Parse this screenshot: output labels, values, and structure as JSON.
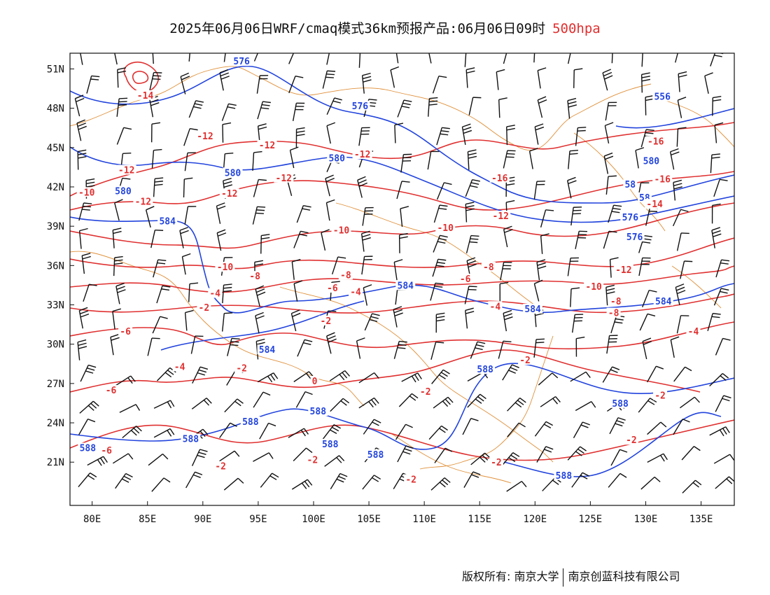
{
  "title": {
    "main": "2025年06月06日WRF/cmaq模式36km预报产品:06月06日09时",
    "level": "500hpa"
  },
  "colors": {
    "temperature": "#e03030",
    "height": "#2244dd",
    "boundary": "#e0903a",
    "wind": "#111111",
    "text": "#111111"
  },
  "axes": {
    "lat_ticks": [
      "51N",
      "48N",
      "45N",
      "42N",
      "39N",
      "36N",
      "33N",
      "30N",
      "27N",
      "24N",
      "21N"
    ],
    "lon_ticks": [
      "80E",
      "85E",
      "90E",
      "95E",
      "100E",
      "105E",
      "110E",
      "115E",
      "120E",
      "125E",
      "130E",
      "135E"
    ]
  },
  "footer": {
    "left": "版权所有: 南京大学",
    "right": "南京创蓝科技有限公司"
  },
  "height_labels": [
    {
      "text": "576",
      "lon": 93.5,
      "lat": 51.5
    },
    {
      "text": "576",
      "lon": 104.2,
      "lat": 48.1
    },
    {
      "text": "556",
      "lon": 131.5,
      "lat": 48.8
    },
    {
      "text": "580",
      "lon": 92.7,
      "lat": 43.0
    },
    {
      "text": "580",
      "lon": 102.1,
      "lat": 44.1
    },
    {
      "text": "580",
      "lon": 82.8,
      "lat": 41.6
    },
    {
      "text": "580",
      "lon": 130.5,
      "lat": 43.9
    },
    {
      "text": "584",
      "lon": 86.8,
      "lat": 39.3
    },
    {
      "text": "584",
      "lon": 108.3,
      "lat": 34.4
    },
    {
      "text": "584",
      "lon": 119.8,
      "lat": 32.6
    },
    {
      "text": "584",
      "lon": 95.8,
      "lat": 29.5
    },
    {
      "text": "584",
      "lon": 131.6,
      "lat": 33.2
    },
    {
      "text": "576",
      "lon": 129.0,
      "lat": 38.1
    },
    {
      "text": "576",
      "lon": 128.6,
      "lat": 39.6
    },
    {
      "text": "588",
      "lon": 115.5,
      "lat": 28.0
    },
    {
      "text": "588",
      "lon": 127.7,
      "lat": 25.4
    },
    {
      "text": "588",
      "lon": 100.4,
      "lat": 24.8
    },
    {
      "text": "588",
      "lon": 94.3,
      "lat": 24.0
    },
    {
      "text": "588",
      "lon": 88.9,
      "lat": 22.7
    },
    {
      "text": "588",
      "lon": 101.5,
      "lat": 22.3
    },
    {
      "text": "588",
      "lon": 79.6,
      "lat": 22.0
    },
    {
      "text": "588",
      "lon": 105.6,
      "lat": 21.5
    },
    {
      "text": "588",
      "lon": 122.6,
      "lat": 19.9
    },
    {
      "text": "58",
      "lon": 129.9,
      "lat": 41.1
    },
    {
      "text": "58",
      "lon": 128.6,
      "lat": 42.1
    }
  ],
  "temp_labels": [
    {
      "text": "-14",
      "lon": 84.8,
      "lat": 48.9
    },
    {
      "text": "-12",
      "lon": 90.2,
      "lat": 45.8
    },
    {
      "text": "-12",
      "lon": 95.8,
      "lat": 45.1
    },
    {
      "text": "-12",
      "lon": 104.4,
      "lat": 44.4
    },
    {
      "text": "-12",
      "lon": 83.1,
      "lat": 43.2
    },
    {
      "text": "-10",
      "lon": 79.5,
      "lat": 41.5
    },
    {
      "text": "-12",
      "lon": 84.6,
      "lat": 40.8
    },
    {
      "text": "-12",
      "lon": 92.4,
      "lat": 41.4
    },
    {
      "text": "-12",
      "lon": 97.3,
      "lat": 42.6
    },
    {
      "text": "-12",
      "lon": 116.9,
      "lat": 39.7
    },
    {
      "text": "-16",
      "lon": 116.8,
      "lat": 42.6
    },
    {
      "text": "-16",
      "lon": 130.9,
      "lat": 45.4
    },
    {
      "text": "-16",
      "lon": 131.5,
      "lat": 42.5
    },
    {
      "text": "-14",
      "lon": 130.8,
      "lat": 40.6
    },
    {
      "text": "-10",
      "lon": 102.5,
      "lat": 38.6
    },
    {
      "text": "-10",
      "lon": 111.9,
      "lat": 38.8
    },
    {
      "text": "-10",
      "lon": 92.0,
      "lat": 35.8
    },
    {
      "text": "-8",
      "lon": 94.7,
      "lat": 35.1
    },
    {
      "text": "-8",
      "lon": 102.9,
      "lat": 35.2
    },
    {
      "text": "-8",
      "lon": 115.8,
      "lat": 35.8
    },
    {
      "text": "-6",
      "lon": 113.7,
      "lat": 34.9
    },
    {
      "text": "-6",
      "lon": 101.7,
      "lat": 34.2
    },
    {
      "text": "-4",
      "lon": 103.8,
      "lat": 33.9
    },
    {
      "text": "-4",
      "lon": 91.1,
      "lat": 33.8
    },
    {
      "text": "-4",
      "lon": 116.4,
      "lat": 32.8
    },
    {
      "text": "-12",
      "lon": 128.0,
      "lat": 35.6
    },
    {
      "text": "-10",
      "lon": 125.3,
      "lat": 34.3
    },
    {
      "text": "-8",
      "lon": 127.3,
      "lat": 33.2
    },
    {
      "text": "-8",
      "lon": 127.1,
      "lat": 32.3
    },
    {
      "text": "-2",
      "lon": 90.1,
      "lat": 32.7
    },
    {
      "text": "-2",
      "lon": 101.1,
      "lat": 31.7
    },
    {
      "text": "-6",
      "lon": 83.0,
      "lat": 30.9
    },
    {
      "text": "-4",
      "lon": 87.9,
      "lat": 28.2
    },
    {
      "text": "-2",
      "lon": 93.5,
      "lat": 28.1
    },
    {
      "text": "-2",
      "lon": 119.1,
      "lat": 28.7
    },
    {
      "text": "0",
      "lon": 100.1,
      "lat": 27.1
    },
    {
      "text": "-4",
      "lon": 134.3,
      "lat": 30.9
    },
    {
      "text": "-6",
      "lon": 81.7,
      "lat": 26.4
    },
    {
      "text": "-2",
      "lon": 110.1,
      "lat": 26.3
    },
    {
      "text": "-2",
      "lon": 131.3,
      "lat": 26.0
    },
    {
      "text": "-6",
      "lon": 81.3,
      "lat": 21.8
    },
    {
      "text": "-2",
      "lon": 128.7,
      "lat": 22.6
    },
    {
      "text": "-2",
      "lon": 99.9,
      "lat": 21.1
    },
    {
      "text": "-2",
      "lon": 91.6,
      "lat": 20.6
    },
    {
      "text": "-2",
      "lon": 116.5,
      "lat": 20.9
    },
    {
      "text": "-2",
      "lon": 108.8,
      "lat": 19.6
    }
  ]
}
